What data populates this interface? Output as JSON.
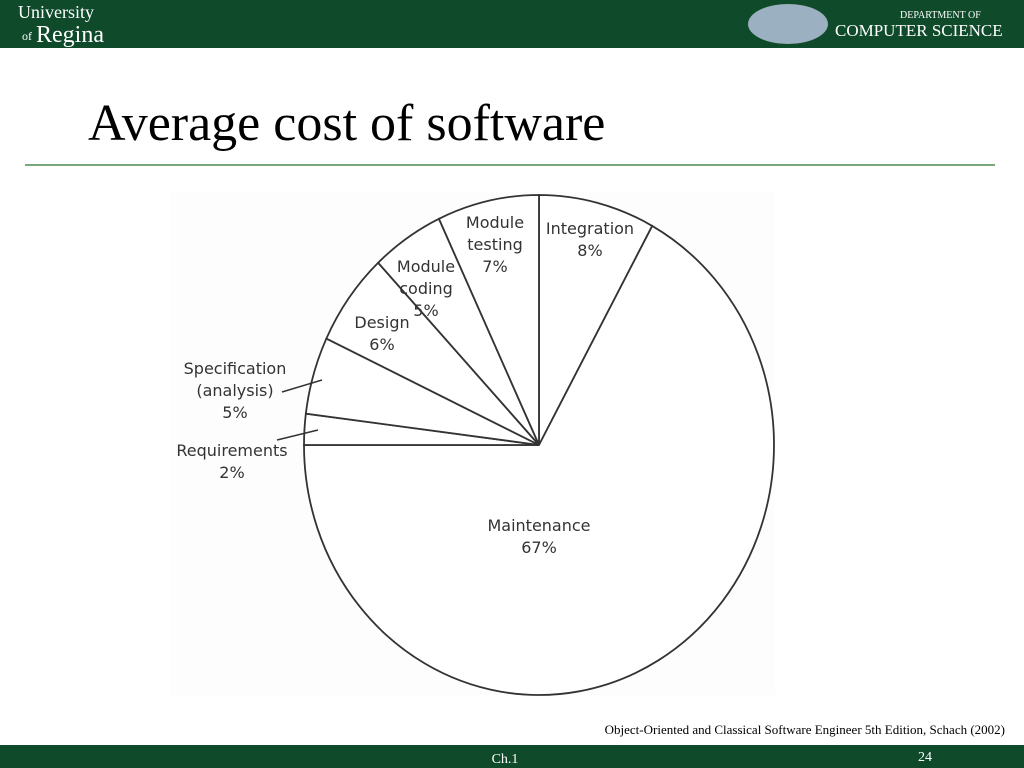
{
  "header": {
    "university": "University",
    "of": "of",
    "regina": "Regina",
    "department_of": "DEPARTMENT OF",
    "computer_science": "COMPUTER SCIENCE"
  },
  "chart_data": {
    "type": "pie",
    "title": "Average cost of software",
    "categories": [
      "Integration",
      "Maintenance",
      "Requirements",
      "Specification (analysis)",
      "Design",
      "Module coding",
      "Module testing"
    ],
    "values": [
      8,
      67,
      2,
      5,
      6,
      5,
      7
    ],
    "value_labels": [
      "8%",
      "67%",
      "2%",
      "5%",
      "6%",
      "5%",
      "7%"
    ],
    "color": "#ffffff",
    "stroke": "#333333"
  },
  "footer": {
    "citation": "Object-Oriented and Classical Software Engineer 5th Edition, Schach (2002)",
    "chapter": "Ch.1",
    "page": "24"
  }
}
